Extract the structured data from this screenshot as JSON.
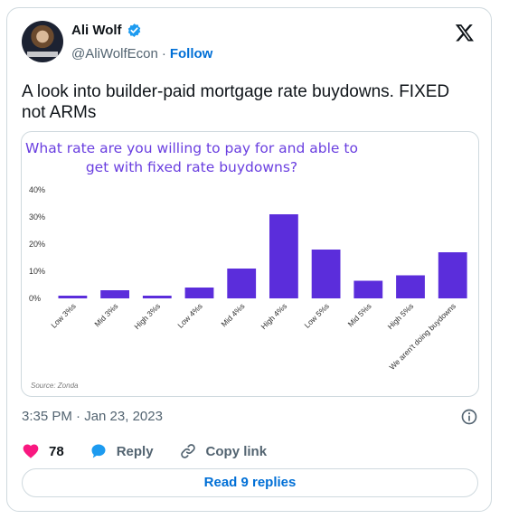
{
  "author": {
    "name": "Ali Wolf",
    "handle": "@AliWolfEcon",
    "separator": "·",
    "follow_label": "Follow"
  },
  "tweet": {
    "text": "A look into builder-paid mortgage rate buydowns. FIXED not ARMs",
    "timestamp": "3:35 PM · Jan 23, 2023"
  },
  "actions": {
    "likes": "78",
    "reply_label": "Reply",
    "copy_label": "Copy link"
  },
  "read_replies_label": "Read 9 replies",
  "colors": {
    "bar": "#5b2ddb",
    "title": "#6a3fe0",
    "link": "#006fd6",
    "like": "#f91880",
    "reply": "#1d9bf0"
  },
  "chart_data": {
    "type": "bar",
    "title_lines": [
      "What rate are you willing to pay for and able to",
      "get with fixed rate buydowns?"
    ],
    "categories": [
      "Low 3%s",
      "Mid 3%s",
      "High 3%s",
      "Low 4%s",
      "Mid 4%s",
      "High 4%s",
      "Low 5%s",
      "Mid 5%s",
      "High 5%s",
      "We aren't doing buydowns"
    ],
    "values": [
      1,
      3,
      1,
      4,
      11,
      31,
      18,
      6.5,
      8.5,
      17
    ],
    "yticks": [
      "0%",
      "10%",
      "20%",
      "30%",
      "40%"
    ],
    "ylim": [
      0,
      40
    ],
    "source": "Source: Zonda"
  }
}
